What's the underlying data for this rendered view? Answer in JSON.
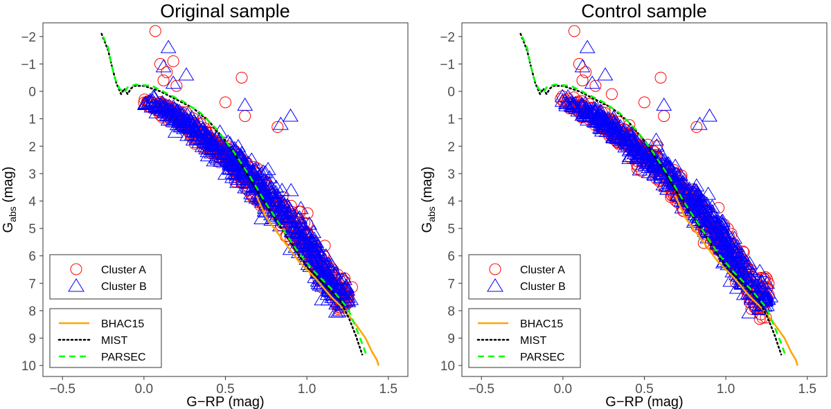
{
  "chart_data": [
    {
      "type": "scatter",
      "title": "Original sample",
      "xlabel": "G−RP (mag)",
      "ylabel_main": "G",
      "ylabel_sub": "abs",
      "ylabel_unit": " (mag)",
      "xlim": [
        -0.62,
        1.62
      ],
      "ylim": [
        10.4,
        -2.5
      ],
      "y_inverted": true,
      "xticks": [
        -0.5,
        0.0,
        0.5,
        1.0,
        1.5
      ],
      "xtick_labels": [
        "−0.5",
        "0.0",
        "0.5",
        "1.0",
        "1.5"
      ],
      "yticks": [
        -2,
        -1,
        0,
        1,
        2,
        3,
        4,
        5,
        6,
        7,
        8,
        9,
        10
      ],
      "ytick_labels": [
        "−2",
        "−1",
        "0",
        "1",
        "2",
        "3",
        "4",
        "5",
        "6",
        "7",
        "8",
        "9",
        "10"
      ],
      "grid": false,
      "legend_position": "bottom-left",
      "scatter_series": [
        {
          "name": "Cluster A",
          "marker": "circle",
          "color": "#ff0000",
          "outliers": [
            [
              0.07,
              -2.2
            ],
            [
              0.1,
              -1.0
            ],
            [
              0.14,
              -0.7
            ],
            [
              0.18,
              -1.1
            ],
            [
              0.6,
              -0.5
            ],
            [
              0.62,
              0.9
            ],
            [
              0.5,
              0.4
            ],
            [
              0.82,
              1.3
            ],
            [
              0.2,
              -0.2
            ],
            [
              0.12,
              -0.4
            ]
          ]
        },
        {
          "name": "Cluster B",
          "marker": "triangle",
          "color": "#0000ff",
          "outliers": [
            [
              0.15,
              -1.6
            ],
            [
              0.26,
              -0.6
            ],
            [
              0.62,
              0.5
            ],
            [
              0.9,
              0.9
            ],
            [
              0.84,
              1.2
            ],
            [
              0.12,
              -0.9
            ],
            [
              0.18,
              -0.3
            ]
          ]
        }
      ],
      "isochrones": [
        {
          "name": "BHAC15",
          "style": "solid",
          "color": "#ffa500",
          "points": [
            [
              0.69,
              3.8
            ],
            [
              0.75,
              4.6
            ],
            [
              0.85,
              5.4
            ],
            [
              0.95,
              6.2
            ],
            [
              1.05,
              6.8
            ],
            [
              1.15,
              7.5
            ],
            [
              1.22,
              7.9
            ],
            [
              1.3,
              8.5
            ],
            [
              1.36,
              9.0
            ],
            [
              1.4,
              9.5
            ],
            [
              1.43,
              9.8
            ],
            [
              1.44,
              10.0
            ]
          ]
        },
        {
          "name": "MIST",
          "style": "dotted",
          "color": "#000000",
          "points": [
            [
              -0.26,
              -2.1
            ],
            [
              -0.22,
              -1.5
            ],
            [
              -0.2,
              -1.0
            ],
            [
              -0.17,
              -0.3
            ],
            [
              -0.14,
              0.1
            ],
            [
              -0.12,
              -0.1
            ],
            [
              -0.1,
              0.1
            ],
            [
              -0.08,
              -0.1
            ],
            [
              -0.06,
              -0.2
            ],
            [
              0.0,
              -0.2
            ],
            [
              0.1,
              0.0
            ],
            [
              0.2,
              0.3
            ],
            [
              0.3,
              0.6
            ],
            [
              0.4,
              1.1
            ],
            [
              0.5,
              1.8
            ],
            [
              0.6,
              2.7
            ],
            [
              0.7,
              3.7
            ],
            [
              0.8,
              4.6
            ],
            [
              0.9,
              5.5
            ],
            [
              1.0,
              6.4
            ],
            [
              1.1,
              7.0
            ],
            [
              1.2,
              7.6
            ],
            [
              1.26,
              8.3
            ],
            [
              1.3,
              8.9
            ],
            [
              1.34,
              9.6
            ]
          ]
        },
        {
          "name": "PARSEC",
          "style": "dashed",
          "color": "#00ff00",
          "points": [
            [
              -0.25,
              -2.0
            ],
            [
              -0.22,
              -1.6
            ],
            [
              -0.2,
              -1.0
            ],
            [
              -0.18,
              -0.5
            ],
            [
              -0.15,
              -0.1
            ],
            [
              -0.12,
              0.05
            ],
            [
              -0.1,
              -0.15
            ],
            [
              -0.05,
              -0.25
            ],
            [
              0.05,
              -0.2
            ],
            [
              0.15,
              0.1
            ],
            [
              0.25,
              0.4
            ],
            [
              0.35,
              0.8
            ],
            [
              0.45,
              1.4
            ],
            [
              0.55,
              2.2
            ],
            [
              0.65,
              3.1
            ],
            [
              0.75,
              4.1
            ],
            [
              0.85,
              5.0
            ],
            [
              0.95,
              5.9
            ],
            [
              1.05,
              6.6
            ],
            [
              1.15,
              7.2
            ],
            [
              1.25,
              7.9
            ],
            [
              1.3,
              8.6
            ],
            [
              1.34,
              9.2
            ],
            [
              1.37,
              9.7
            ]
          ]
        }
      ]
    },
    {
      "type": "scatter",
      "title": "Control sample",
      "xlabel": "G−RP (mag)",
      "ylabel_main": "G",
      "ylabel_sub": "abs",
      "ylabel_unit": " (mag)",
      "xlim": [
        -0.62,
        1.62
      ],
      "ylim": [
        10.4,
        -2.5
      ],
      "y_inverted": true,
      "xticks": [
        -0.5,
        0.0,
        0.5,
        1.0,
        1.5
      ],
      "xtick_labels": [
        "−0.5",
        "0.0",
        "0.5",
        "1.0",
        "1.5"
      ],
      "yticks": [
        -2,
        -1,
        0,
        1,
        2,
        3,
        4,
        5,
        6,
        7,
        8,
        9,
        10
      ],
      "ytick_labels": [
        "−2",
        "−1",
        "0",
        "1",
        "2",
        "3",
        "4",
        "5",
        "6",
        "7",
        "8",
        "9",
        "10"
      ],
      "grid": false,
      "legend_position": "bottom-left",
      "scatter_series": [
        {
          "name": "Cluster A",
          "marker": "circle",
          "color": "#ff0000",
          "outliers": [
            [
              0.07,
              -2.2
            ],
            [
              0.1,
              -1.0
            ],
            [
              0.14,
              -0.7
            ],
            [
              0.6,
              -0.5
            ],
            [
              0.62,
              0.9
            ],
            [
              0.5,
              0.4
            ],
            [
              0.82,
              1.3
            ],
            [
              0.2,
              -0.2
            ],
            [
              0.12,
              -0.4
            ],
            [
              0.3,
              0.1
            ]
          ]
        },
        {
          "name": "Cluster B",
          "marker": "triangle",
          "color": "#0000ff",
          "outliers": [
            [
              0.15,
              -1.6
            ],
            [
              0.26,
              -0.6
            ],
            [
              0.62,
              0.5
            ],
            [
              0.9,
              0.9
            ],
            [
              0.84,
              1.2
            ],
            [
              0.12,
              -0.9
            ],
            [
              0.18,
              -0.3
            ]
          ]
        }
      ],
      "isochrones": [
        {
          "name": "BHAC15",
          "style": "solid",
          "color": "#ffa500",
          "points": [
            [
              0.69,
              3.8
            ],
            [
              0.75,
              4.6
            ],
            [
              0.85,
              5.4
            ],
            [
              0.95,
              6.2
            ],
            [
              1.05,
              6.8
            ],
            [
              1.15,
              7.5
            ],
            [
              1.22,
              7.9
            ],
            [
              1.3,
              8.5
            ],
            [
              1.36,
              9.0
            ],
            [
              1.4,
              9.5
            ],
            [
              1.43,
              9.8
            ],
            [
              1.44,
              10.0
            ]
          ]
        },
        {
          "name": "MIST",
          "style": "dotted",
          "color": "#000000",
          "points": [
            [
              -0.26,
              -2.1
            ],
            [
              -0.22,
              -1.5
            ],
            [
              -0.2,
              -1.0
            ],
            [
              -0.17,
              -0.3
            ],
            [
              -0.14,
              0.1
            ],
            [
              -0.12,
              -0.1
            ],
            [
              -0.1,
              0.1
            ],
            [
              -0.08,
              -0.1
            ],
            [
              -0.06,
              -0.2
            ],
            [
              0.0,
              -0.2
            ],
            [
              0.1,
              0.0
            ],
            [
              0.2,
              0.3
            ],
            [
              0.3,
              0.6
            ],
            [
              0.4,
              1.1
            ],
            [
              0.5,
              1.8
            ],
            [
              0.6,
              2.7
            ],
            [
              0.7,
              3.7
            ],
            [
              0.8,
              4.6
            ],
            [
              0.9,
              5.5
            ],
            [
              1.0,
              6.4
            ],
            [
              1.1,
              7.0
            ],
            [
              1.2,
              7.6
            ],
            [
              1.26,
              8.3
            ],
            [
              1.3,
              8.9
            ],
            [
              1.34,
              9.6
            ]
          ]
        },
        {
          "name": "PARSEC",
          "style": "dashed",
          "color": "#00ff00",
          "points": [
            [
              -0.25,
              -2.0
            ],
            [
              -0.22,
              -1.6
            ],
            [
              -0.2,
              -1.0
            ],
            [
              -0.18,
              -0.5
            ],
            [
              -0.15,
              -0.1
            ],
            [
              -0.12,
              0.05
            ],
            [
              -0.1,
              -0.15
            ],
            [
              -0.05,
              -0.25
            ],
            [
              0.05,
              -0.2
            ],
            [
              0.15,
              0.1
            ],
            [
              0.25,
              0.4
            ],
            [
              0.35,
              0.8
            ],
            [
              0.45,
              1.4
            ],
            [
              0.55,
              2.2
            ],
            [
              0.65,
              3.1
            ],
            [
              0.75,
              4.1
            ],
            [
              0.85,
              5.0
            ],
            [
              0.95,
              5.9
            ],
            [
              1.05,
              6.6
            ],
            [
              1.15,
              7.2
            ],
            [
              1.25,
              7.9
            ],
            [
              1.3,
              8.6
            ],
            [
              1.34,
              9.2
            ],
            [
              1.37,
              9.7
            ]
          ]
        }
      ]
    }
  ]
}
